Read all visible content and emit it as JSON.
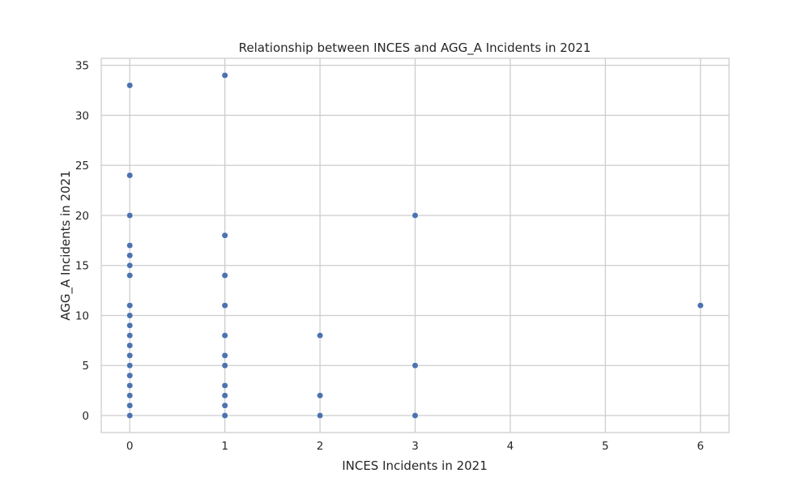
{
  "chart_data": {
    "type": "scatter",
    "title": "Relationship between INCES and AGG_A Incidents in 2021",
    "xlabel": "INCES Incidents in 2021",
    "ylabel": "AGG_A Incidents in 2021",
    "xlim": [
      -0.3,
      6.3
    ],
    "ylim": [
      -1.7,
      35.7
    ],
    "xticks": [
      "0",
      "1",
      "2",
      "3",
      "4",
      "5",
      "6"
    ],
    "yticks": [
      "0",
      "5",
      "10",
      "15",
      "20",
      "25",
      "30",
      "35"
    ],
    "grid": true,
    "point_color": "#4c72b0",
    "points": [
      {
        "x": 0,
        "y": 33
      },
      {
        "x": 0,
        "y": 24
      },
      {
        "x": 0,
        "y": 20
      },
      {
        "x": 0,
        "y": 17
      },
      {
        "x": 0,
        "y": 16
      },
      {
        "x": 0,
        "y": 15
      },
      {
        "x": 0,
        "y": 14
      },
      {
        "x": 0,
        "y": 11
      },
      {
        "x": 0,
        "y": 10
      },
      {
        "x": 0,
        "y": 9
      },
      {
        "x": 0,
        "y": 8
      },
      {
        "x": 0,
        "y": 7
      },
      {
        "x": 0,
        "y": 6
      },
      {
        "x": 0,
        "y": 5
      },
      {
        "x": 0,
        "y": 4
      },
      {
        "x": 0,
        "y": 3
      },
      {
        "x": 0,
        "y": 2
      },
      {
        "x": 0,
        "y": 1
      },
      {
        "x": 0,
        "y": 0
      },
      {
        "x": 1,
        "y": 34
      },
      {
        "x": 1,
        "y": 18
      },
      {
        "x": 1,
        "y": 14
      },
      {
        "x": 1,
        "y": 11
      },
      {
        "x": 1,
        "y": 8
      },
      {
        "x": 1,
        "y": 6
      },
      {
        "x": 1,
        "y": 5
      },
      {
        "x": 1,
        "y": 3
      },
      {
        "x": 1,
        "y": 2
      },
      {
        "x": 1,
        "y": 1
      },
      {
        "x": 1,
        "y": 0
      },
      {
        "x": 2,
        "y": 8
      },
      {
        "x": 2,
        "y": 2
      },
      {
        "x": 2,
        "y": 0
      },
      {
        "x": 3,
        "y": 20
      },
      {
        "x": 3,
        "y": 5
      },
      {
        "x": 3,
        "y": 0
      },
      {
        "x": 6,
        "y": 11
      }
    ]
  }
}
